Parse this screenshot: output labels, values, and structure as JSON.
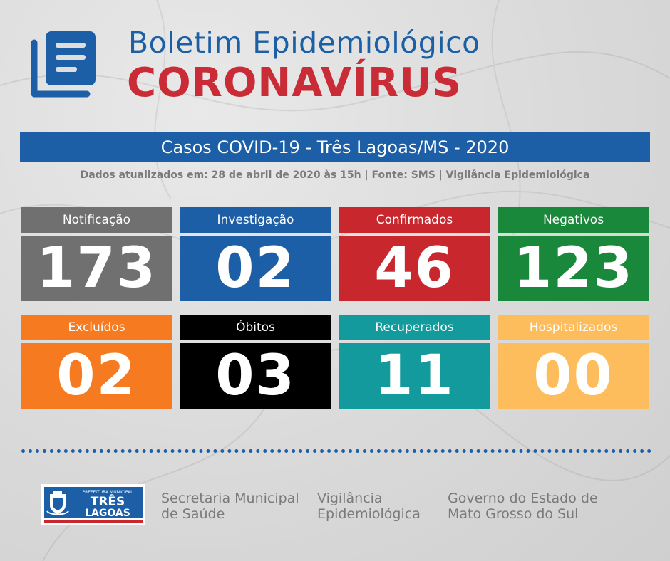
{
  "header": {
    "title_line1": "Boletim Epidemiológico",
    "title_line2": "CORONAVÍRUS",
    "icon": "document-list-icon"
  },
  "banner": {
    "title": "Casos COVID-19 - Três Lagoas/MS - 2020",
    "subtitle": "Dados atualizados em: 28 de abril de 2020 às 15h | Fonte: SMS | Vigilância Epidemiológica"
  },
  "stats": [
    {
      "label": "Notificação",
      "value": "173",
      "color": "#707070"
    },
    {
      "label": "Investigação",
      "value": "02",
      "color": "#1d5fa6"
    },
    {
      "label": "Confirmados",
      "value": "46",
      "color": "#c8272e"
    },
    {
      "label": "Negativos",
      "value": "123",
      "color": "#19883b"
    },
    {
      "label": "Excluídos",
      "value": "02",
      "color": "#f57a20"
    },
    {
      "label": "Óbitos",
      "value": "03",
      "color": "#000000"
    },
    {
      "label": "Recuperados",
      "value": "11",
      "color": "#129a9c"
    },
    {
      "label": "Hospitalizados",
      "value": "00",
      "color": "#fdbd5c"
    }
  ],
  "footer": {
    "city_logo": {
      "line1": "PREFEITURA MUNICIPAL",
      "line2": "TRÊS",
      "line3": "LAGOAS"
    },
    "org1": {
      "line1": "Secretaria Municipal",
      "line2": "de Saúde"
    },
    "org2": {
      "line1": "Vigilância",
      "line2": "Epidemiológica"
    },
    "org3": {
      "line1": "Governo do Estado de",
      "line2": "Mato Grosso do Sul"
    }
  }
}
